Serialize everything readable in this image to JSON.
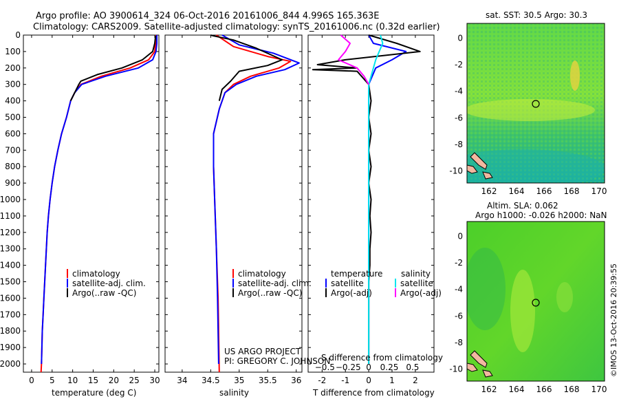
{
  "header": {
    "line1": "Argo profile: AO 3900614_324 06-Oct-2016 20161006_844 4.996S 165.363E",
    "line2": "Climatology: CARS2009. Satellite-adjusted climatology: synTS_20161006.nc (0.32d earlier)"
  },
  "footer_right": "©IMOS 13-Oct-2016 20:39:55",
  "project": {
    "line1": "US ARGO PROJECT",
    "line2": "PI: GREGORY C. JOHNSON"
  },
  "colors": {
    "climatology": "#ff0000",
    "satellite": "#0000ff",
    "argo": "#000000",
    "sat_salt": "#00e5ee",
    "argo_salt": "#ff00ff"
  },
  "chart_data": [
    {
      "type": "line",
      "id": "temperature",
      "xlabel": "temperature (deg C)",
      "ylabel": "",
      "xlim": [
        -2,
        31
      ],
      "ylim": [
        2050,
        0
      ],
      "xticks": [
        0,
        5,
        10,
        15,
        20,
        25,
        30
      ],
      "yticks": [
        0,
        100,
        200,
        300,
        400,
        500,
        600,
        700,
        800,
        900,
        1000,
        1100,
        1200,
        1300,
        1400,
        1500,
        1600,
        1700,
        1800,
        1900,
        2000
      ],
      "legend": [
        "climatology",
        "satellite-adj. clim.",
        "Argo(..raw -QC)"
      ],
      "series": [
        {
          "name": "climatology",
          "color": "#ff0000",
          "points": [
            [
              30.3,
              0
            ],
            [
              30.2,
              50
            ],
            [
              30.0,
              100
            ],
            [
              28.5,
              150
            ],
            [
              24,
              200
            ],
            [
              17,
              250
            ],
            [
              12,
              300
            ],
            [
              10.5,
              350
            ],
            [
              9.5,
              400
            ],
            [
              8.5,
              500
            ],
            [
              7.3,
              600
            ],
            [
              6.4,
              700
            ],
            [
              5.6,
              800
            ],
            [
              5.0,
              900
            ],
            [
              4.5,
              1000
            ],
            [
              4.1,
              1100
            ],
            [
              3.8,
              1200
            ],
            [
              3.6,
              1300
            ],
            [
              3.4,
              1400
            ],
            [
              3.2,
              1500
            ],
            [
              3.0,
              1600
            ],
            [
              2.8,
              1700
            ],
            [
              2.6,
              1800
            ],
            [
              2.5,
              1900
            ],
            [
              2.4,
              2000
            ],
            [
              2.3,
              2050
            ]
          ]
        },
        {
          "name": "satellite-adj. clim.",
          "color": "#0000ff",
          "points": [
            [
              30.5,
              0
            ],
            [
              30.5,
              50
            ],
            [
              30.3,
              100
            ],
            [
              29.5,
              150
            ],
            [
              26,
              200
            ],
            [
              18,
              250
            ],
            [
              12.2,
              300
            ],
            [
              10.5,
              350
            ],
            [
              9.5,
              400
            ],
            [
              8.5,
              500
            ],
            [
              7.3,
              600
            ],
            [
              6.4,
              700
            ],
            [
              5.6,
              800
            ],
            [
              5.0,
              900
            ],
            [
              4.5,
              1000
            ],
            [
              4.1,
              1100
            ],
            [
              3.8,
              1200
            ],
            [
              3.6,
              1300
            ],
            [
              3.4,
              1400
            ],
            [
              3.2,
              1500
            ],
            [
              3.0,
              1600
            ],
            [
              2.8,
              1700
            ],
            [
              2.6,
              1800
            ],
            [
              2.5,
              1900
            ],
            [
              2.4,
              2000
            ]
          ]
        },
        {
          "name": "Argo(..raw -QC)",
          "color": "#000000",
          "points": [
            [
              30.2,
              5
            ],
            [
              30.0,
              50
            ],
            [
              29.5,
              100
            ],
            [
              27,
              150
            ],
            [
              22,
              200
            ],
            [
              16,
              240
            ],
            [
              12,
              280
            ],
            [
              11.5,
              300
            ],
            [
              10.5,
              350
            ],
            [
              9.5,
              400
            ]
          ]
        }
      ]
    },
    {
      "type": "line",
      "id": "salinity",
      "xlabel": "salinity",
      "ylabel": "",
      "xlim": [
        33.7,
        36.1
      ],
      "ylim": [
        2050,
        0
      ],
      "xticks": [
        34,
        34.5,
        35,
        35.5,
        36
      ],
      "legend": [
        "climatology",
        "satellite-adj. clim.",
        "Argo(..raw -QC)"
      ],
      "series": [
        {
          "name": "climatology",
          "color": "#ff0000",
          "points": [
            [
              34.6,
              0
            ],
            [
              34.9,
              70
            ],
            [
              35.5,
              130
            ],
            [
              35.9,
              160
            ],
            [
              35.7,
              200
            ],
            [
              35.2,
              250
            ],
            [
              34.9,
              300
            ],
            [
              34.75,
              350
            ],
            [
              34.65,
              450
            ],
            [
              34.55,
              600
            ],
            [
              34.55,
              800
            ],
            [
              34.57,
              1000
            ],
            [
              34.6,
              1300
            ],
            [
              34.63,
              1600
            ],
            [
              34.65,
              2050
            ]
          ]
        },
        {
          "name": "satellite-adj. clim.",
          "color": "#0000ff",
          "points": [
            [
              34.7,
              0
            ],
            [
              35.0,
              60
            ],
            [
              35.6,
              110
            ],
            [
              36.05,
              170
            ],
            [
              35.8,
              210
            ],
            [
              35.3,
              250
            ],
            [
              34.95,
              300
            ],
            [
              34.75,
              350
            ],
            [
              34.65,
              450
            ],
            [
              34.55,
              600
            ],
            [
              34.55,
              800
            ],
            [
              34.57,
              1000
            ],
            [
              34.6,
              1300
            ],
            [
              34.62,
              1600
            ],
            [
              34.64,
              2000
            ]
          ]
        },
        {
          "name": "Argo(..raw -QC)",
          "color": "#000000",
          "points": [
            [
              34.5,
              0
            ],
            [
              34.55,
              5
            ],
            [
              34.9,
              30
            ],
            [
              35.3,
              80
            ],
            [
              35.75,
              150
            ],
            [
              35.5,
              185
            ],
            [
              35.0,
              220
            ],
            [
              34.85,
              280
            ],
            [
              34.7,
              330
            ],
            [
              34.65,
              400
            ]
          ]
        }
      ]
    },
    {
      "type": "line",
      "id": "difference",
      "xlabel": "T difference from climatology",
      "xlabel_top": "S difference from climatology",
      "xlim": [
        -2.6,
        2.8
      ],
      "ylim": [
        2050,
        0
      ],
      "xticks": [
        -2,
        -1,
        0,
        1,
        2
      ],
      "xticks_s": [
        -0.5,
        -0.25,
        0,
        0.25,
        0.5
      ],
      "legend_titles": [
        "temperature",
        "salinity"
      ],
      "legend": [
        "satellite",
        "Argo(-adj)",
        "satellite",
        "Argo(-adj)"
      ],
      "series": [
        {
          "name": "satellite",
          "color": "#0000ff",
          "points": [
            [
              0,
              0
            ],
            [
              0.2,
              50
            ],
            [
              1.6,
              100
            ],
            [
              1.0,
              150
            ],
            [
              0.3,
              200
            ],
            [
              0,
              300
            ],
            [
              0,
              2000
            ]
          ]
        },
        {
          "name": "Argo(-adj)",
          "color": "#000000",
          "points": [
            [
              0,
              0
            ],
            [
              1.2,
              50
            ],
            [
              2.2,
              100
            ],
            [
              -1.0,
              150
            ],
            [
              -2.2,
              180
            ],
            [
              -0.5,
              200
            ],
            [
              -2.4,
              210
            ],
            [
              -0.5,
              220
            ],
            [
              0,
              300
            ],
            [
              0.1,
              400
            ],
            [
              0,
              500
            ],
            [
              0.1,
              600
            ],
            [
              0,
              700
            ],
            [
              0.1,
              800
            ],
            [
              0,
              900
            ],
            [
              0.1,
              1000
            ],
            [
              0.05,
              1100
            ],
            [
              0.1,
              1200
            ],
            [
              0.05,
              1300
            ],
            [
              0.05,
              1400
            ],
            [
              0,
              1500
            ],
            [
              0,
              1600
            ],
            [
              0,
              1700
            ],
            [
              0,
              1800
            ],
            [
              0,
              1900
            ],
            [
              0,
              2000
            ]
          ]
        },
        {
          "name": "satellite",
          "color": "#00e5ee",
          "points": [
            [
              0.5,
              0
            ],
            [
              0.6,
              50
            ],
            [
              0.3,
              150
            ],
            [
              0.1,
              250
            ],
            [
              0,
              300
            ],
            [
              0,
              2000
            ]
          ]
        },
        {
          "name": "Argo(-adj)",
          "color": "#ff00ff",
          "points": [
            [
              -1.2,
              0
            ],
            [
              -0.8,
              50
            ],
            [
              -1.0,
              100
            ],
            [
              -1.3,
              150
            ],
            [
              -0.5,
              200
            ],
            [
              -0.2,
              250
            ],
            [
              0,
              300
            ]
          ]
        }
      ]
    },
    {
      "type": "heatmap",
      "id": "sst_map",
      "title": "sat. SST: 30.5  Argo: 30.3",
      "xlim": [
        160.4,
        170.4
      ],
      "ylim": [
        -10.9,
        1.1
      ],
      "xticks": [
        162,
        164,
        166,
        168,
        170
      ],
      "yticks": [
        0,
        -2,
        -4,
        -6,
        -8,
        -10
      ],
      "marker": {
        "lon": 165.363,
        "lat": -4.996
      }
    },
    {
      "type": "heatmap",
      "id": "sla_map",
      "title_line1": "Altim. SLA: 0.062",
      "title_line2": "Argo h1000: -0.026 h2000: NaN",
      "xlim": [
        160.4,
        170.4
      ],
      "ylim": [
        -10.9,
        1.1
      ],
      "xticks": [
        162,
        164,
        166,
        168,
        170
      ],
      "yticks": [
        0,
        -2,
        -4,
        -6,
        -8,
        -10
      ],
      "marker": {
        "lon": 165.363,
        "lat": -4.996
      }
    }
  ]
}
